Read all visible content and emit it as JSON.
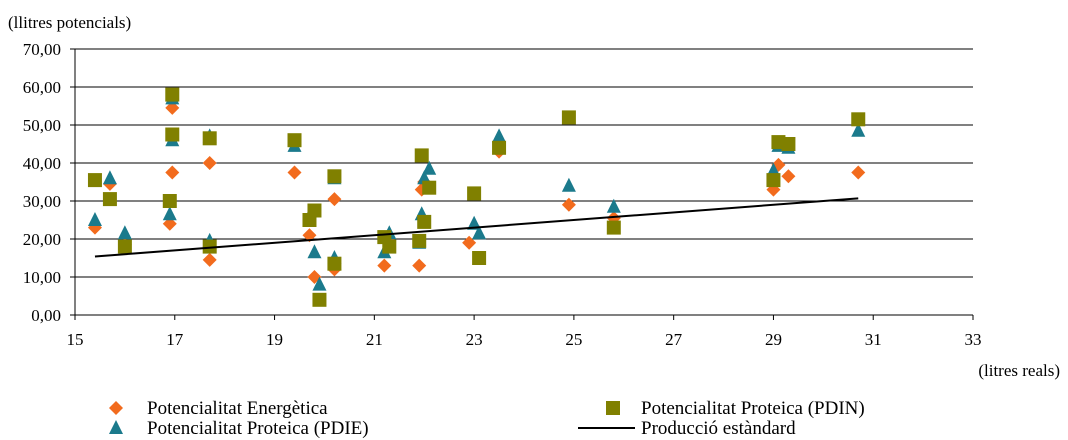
{
  "chart_data": {
    "type": "scatter",
    "y_unit_label": "(llitres potencials)",
    "x_unit_label": "(litres reals)",
    "xlim": [
      15,
      33
    ],
    "ylim": [
      0,
      70
    ],
    "x_ticks": [
      "15",
      "17",
      "19",
      "21",
      "23",
      "25",
      "27",
      "29",
      "31",
      "33"
    ],
    "y_ticks": [
      "0,00",
      "10,00",
      "20,00",
      "30,00",
      "40,00",
      "50,00",
      "60,00",
      "70,00"
    ],
    "grid": "horizontal",
    "legend_position": "bottom",
    "series": [
      {
        "name": "Potencialitat Energètica",
        "marker": "diamond",
        "color": "#F26B1D",
        "points": [
          [
            15.4,
            23.0
          ],
          [
            15.7,
            34.5
          ],
          [
            16.0,
            18.5
          ],
          [
            16.9,
            24.0
          ],
          [
            16.95,
            37.5
          ],
          [
            16.95,
            54.5
          ],
          [
            17.7,
            14.5
          ],
          [
            17.7,
            40.0
          ],
          [
            19.4,
            37.5
          ],
          [
            19.7,
            21.0
          ],
          [
            19.8,
            10.0
          ],
          [
            20.2,
            12.0
          ],
          [
            20.2,
            30.5
          ],
          [
            21.2,
            13.0
          ],
          [
            21.3,
            19.5
          ],
          [
            21.9,
            13.0
          ],
          [
            21.95,
            33.0
          ],
          [
            22.0,
            35.0
          ],
          [
            22.9,
            19.0
          ],
          [
            23.5,
            43.0
          ],
          [
            24.9,
            29.0
          ],
          [
            25.8,
            25.5
          ],
          [
            29.0,
            33.0
          ],
          [
            29.1,
            39.5
          ],
          [
            29.3,
            36.5
          ],
          [
            30.7,
            37.5
          ]
        ]
      },
      {
        "name": "Potencialitat Proteica (PDIN)",
        "marker": "square",
        "color": "#808000",
        "points": [
          [
            15.4,
            35.5
          ],
          [
            15.7,
            30.5
          ],
          [
            16.0,
            18.0
          ],
          [
            16.9,
            30.0
          ],
          [
            16.95,
            47.5
          ],
          [
            16.95,
            58.0
          ],
          [
            17.7,
            18.0
          ],
          [
            17.7,
            46.5
          ],
          [
            19.4,
            46.0
          ],
          [
            19.7,
            25.0
          ],
          [
            19.8,
            27.5
          ],
          [
            19.9,
            4.0
          ],
          [
            20.2,
            13.5
          ],
          [
            20.2,
            36.5
          ],
          [
            21.2,
            20.5
          ],
          [
            21.3,
            18.0
          ],
          [
            21.9,
            19.5
          ],
          [
            21.95,
            42.0
          ],
          [
            22.0,
            24.5
          ],
          [
            22.1,
            33.5
          ],
          [
            23.0,
            32.0
          ],
          [
            23.1,
            15.0
          ],
          [
            23.5,
            44.0
          ],
          [
            24.9,
            52.0
          ],
          [
            25.8,
            23.0
          ],
          [
            29.0,
            35.5
          ],
          [
            29.1,
            45.5
          ],
          [
            29.3,
            45.0
          ],
          [
            30.7,
            51.5
          ]
        ]
      },
      {
        "name": "Potencialitat Proteica (PDIE)",
        "marker": "triangle",
        "color": "#1B7A8C",
        "points": [
          [
            15.4,
            25.0
          ],
          [
            15.7,
            36.0
          ],
          [
            16.0,
            21.5
          ],
          [
            16.9,
            26.5
          ],
          [
            16.95,
            46.0
          ],
          [
            16.95,
            57.0
          ],
          [
            17.7,
            19.5
          ],
          [
            17.7,
            47.0
          ],
          [
            19.4,
            44.5
          ],
          [
            19.7,
            26.0
          ],
          [
            19.8,
            16.5
          ],
          [
            19.9,
            8.0
          ],
          [
            20.2,
            15.0
          ],
          [
            20.2,
            36.0
          ],
          [
            21.2,
            16.5
          ],
          [
            21.3,
            21.5
          ],
          [
            21.9,
            19.0
          ],
          [
            21.95,
            26.5
          ],
          [
            22.0,
            36.0
          ],
          [
            22.1,
            38.5
          ],
          [
            23.0,
            24.0
          ],
          [
            23.1,
            21.5
          ],
          [
            23.5,
            47.0
          ],
          [
            24.9,
            34.0
          ],
          [
            25.8,
            28.5
          ],
          [
            29.0,
            38.0
          ],
          [
            29.1,
            44.5
          ],
          [
            29.3,
            44.0
          ],
          [
            30.7,
            48.5
          ]
        ]
      },
      {
        "name": "Producció estàndard",
        "marker": "line",
        "color": "#000000",
        "points": [
          [
            15.4,
            15.4
          ],
          [
            30.7,
            30.7
          ]
        ]
      }
    ]
  }
}
